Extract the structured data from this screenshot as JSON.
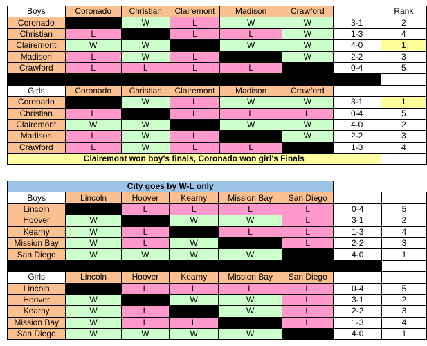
{
  "sections": [
    {
      "id": "north",
      "top": 8,
      "title": "",
      "has_rank_header": true,
      "rank_header": "Rank",
      "banner": "Clairemont won boy's finals, Coronado won girl's Finals",
      "groups": [
        {
          "label": "Boys",
          "teams": [
            "Coronado",
            "Christian",
            "Clairemont",
            "Madison",
            "Crawford"
          ],
          "rows": [
            {
              "team": "Coronado",
              "cells": [
                "X",
                "W",
                "L",
                "W",
                "W"
              ],
              "record": "3-1",
              "rank": "2",
              "gold": false
            },
            {
              "team": "Christian",
              "cells": [
                "L",
                "X",
                "L",
                "L",
                "W"
              ],
              "record": "1-3",
              "rank": "4",
              "gold": false
            },
            {
              "team": "Clairemont",
              "cells": [
                "W",
                "W",
                "X",
                "W",
                "W"
              ],
              "record": "4-0",
              "rank": "1",
              "gold": true
            },
            {
              "team": "Madison",
              "cells": [
                "L",
                "W",
                "L",
                "X",
                "W"
              ],
              "record": "2-2",
              "rank": "3",
              "gold": false
            },
            {
              "team": "Crawford",
              "cells": [
                "L",
                "L",
                "L",
                "L",
                "X"
              ],
              "record": "0-4",
              "rank": "5",
              "gold": false
            }
          ]
        },
        {
          "label": "Girls",
          "teams": [
            "Coronado",
            "Christian",
            "Clairemont",
            "Madison",
            "Crawford"
          ],
          "rows": [
            {
              "team": "Coronado",
              "cells": [
                "X",
                "W",
                "L",
                "W",
                "W"
              ],
              "record": "3-1",
              "rank": "1",
              "gold": true
            },
            {
              "team": "Christian",
              "cells": [
                "L",
                "X",
                "L",
                "L",
                "L"
              ],
              "record": "0-4",
              "rank": "5",
              "gold": false
            },
            {
              "team": "Clairemont",
              "cells": [
                "W",
                "W",
                "X",
                "W",
                "W"
              ],
              "record": "4-0",
              "rank": "2",
              "gold": false
            },
            {
              "team": "Madison",
              "cells": [
                "L",
                "W",
                "L",
                "X",
                "W"
              ],
              "record": "2-2",
              "rank": "3",
              "gold": false
            },
            {
              "team": "Crawford",
              "cells": [
                "L",
                "W",
                "L",
                "L",
                "X"
              ],
              "record": "1-3",
              "rank": "4",
              "gold": false
            }
          ]
        }
      ]
    },
    {
      "id": "city",
      "top": 261,
      "title": "City goes by W-L only",
      "has_rank_header": false,
      "rank_header": "",
      "banner": "",
      "groups": [
        {
          "label": "Boys",
          "teams": [
            "Lincoln",
            "Hoover",
            "Kearny",
            "Mission Bay",
            "San Diego"
          ],
          "rows": [
            {
              "team": "Lincoln",
              "cells": [
                "X",
                "L",
                "L",
                "L",
                "L"
              ],
              "record": "0-4",
              "rank": "5",
              "gold": false
            },
            {
              "team": "Hoover",
              "cells": [
                "W",
                "X",
                "W",
                "W",
                "L"
              ],
              "record": "3-1",
              "rank": "2",
              "gold": false
            },
            {
              "team": "Kearny",
              "cells": [
                "W",
                "L",
                "X",
                "L",
                "L"
              ],
              "record": "1-3",
              "rank": "4",
              "gold": false
            },
            {
              "team": "Mission Bay",
              "cells": [
                "W",
                "L",
                "W",
                "X",
                "L"
              ],
              "record": "2-2",
              "rank": "3",
              "gold": false
            },
            {
              "team": "San Diego",
              "cells": [
                "W",
                "W",
                "W",
                "W",
                "X"
              ],
              "record": "4-0",
              "rank": "1",
              "gold": false
            }
          ]
        },
        {
          "label": "Girls",
          "teams": [
            "Lincoln",
            "Hoover",
            "Kearny",
            "Mission Bay",
            "San Diego"
          ],
          "rows": [
            {
              "team": "Lincoln",
              "cells": [
                "X",
                "L",
                "L",
                "L",
                "L"
              ],
              "record": "0-4",
              "rank": "5",
              "gold": false
            },
            {
              "team": "Hoover",
              "cells": [
                "W",
                "X",
                "W",
                "W",
                "L"
              ],
              "record": "3-1",
              "rank": "2",
              "gold": false
            },
            {
              "team": "Kearny",
              "cells": [
                "W",
                "L",
                "X",
                "W",
                "L"
              ],
              "record": "2-2",
              "rank": "3",
              "gold": false
            },
            {
              "team": "Mission Bay",
              "cells": [
                "W",
                "L",
                "L",
                "X",
                "L"
              ],
              "record": "1-3",
              "rank": "4",
              "gold": false
            },
            {
              "team": "San Diego",
              "cells": [
                "W",
                "W",
                "W",
                "W",
                "X"
              ],
              "record": "4-0",
              "rank": "1",
              "gold": false
            }
          ]
        }
      ]
    }
  ]
}
